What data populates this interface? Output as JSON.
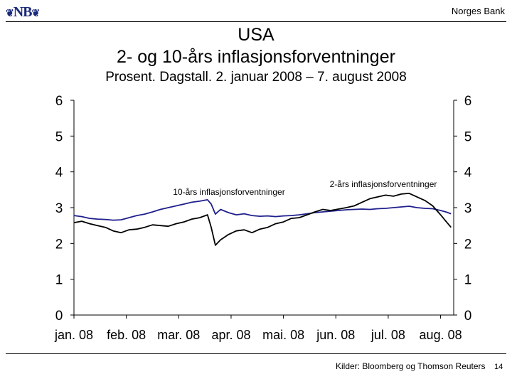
{
  "header": {
    "logo_text": "NB",
    "logo_mark": "❦",
    "bank_name": "Norges Bank"
  },
  "footer": {
    "source": "Kilder: Bloomberg og Thomson Reuters",
    "page_number": "14"
  },
  "chart_data": {
    "type": "line",
    "title": "USA",
    "title_line2": "2- og 10-års inflasjonsforventninger",
    "subtitle": "Prosent. Dagstall. 2. januar 2008 – 7. august 2008",
    "xlabel": "",
    "ylabel": "",
    "ylim": [
      0,
      6
    ],
    "yticks": [
      0,
      1,
      2,
      3,
      4,
      5,
      6
    ],
    "xlim": [
      0,
      7.25
    ],
    "xticks": [
      {
        "pos": 0,
        "label": "jan. 08"
      },
      {
        "pos": 1,
        "label": "feb. 08"
      },
      {
        "pos": 2,
        "label": "mar. 08"
      },
      {
        "pos": 3,
        "label": "apr. 08"
      },
      {
        "pos": 4,
        "label": "mai. 08"
      },
      {
        "pos": 5,
        "label": "jun. 08"
      },
      {
        "pos": 6,
        "label": "jul. 08"
      },
      {
        "pos": 7,
        "label": "aug. 08"
      }
    ],
    "legend_placement": "inline labels",
    "colors": {
      "ten_year": "#1f1f8c",
      "two_year": "#000000"
    },
    "series": [
      {
        "name": "10-års inflasjonsforventninger",
        "color": "#1f1f8c",
        "x": [
          0,
          0.15,
          0.3,
          0.45,
          0.6,
          0.75,
          0.9,
          1.05,
          1.2,
          1.35,
          1.5,
          1.65,
          1.8,
          1.95,
          2.1,
          2.25,
          2.4,
          2.55,
          2.62,
          2.7,
          2.8,
          2.95,
          3.1,
          3.25,
          3.4,
          3.55,
          3.7,
          3.85,
          4.0,
          4.15,
          4.3,
          4.45,
          4.6,
          4.75,
          4.9,
          5.05,
          5.2,
          5.35,
          5.5,
          5.65,
          5.8,
          5.95,
          6.1,
          6.25,
          6.4,
          6.55,
          6.7,
          6.85,
          7.0,
          7.1,
          7.2
        ],
        "values": [
          2.78,
          2.75,
          2.7,
          2.68,
          2.67,
          2.65,
          2.66,
          2.72,
          2.78,
          2.82,
          2.88,
          2.95,
          3.0,
          3.05,
          3.1,
          3.15,
          3.18,
          3.22,
          3.1,
          2.82,
          2.95,
          2.86,
          2.8,
          2.83,
          2.78,
          2.76,
          2.77,
          2.75,
          2.77,
          2.78,
          2.8,
          2.83,
          2.86,
          2.88,
          2.9,
          2.92,
          2.94,
          2.95,
          2.96,
          2.95,
          2.97,
          2.98,
          3.0,
          3.02,
          3.04,
          3.0,
          2.98,
          2.97,
          2.92,
          2.88,
          2.83
        ]
      },
      {
        "name": "2-års inflasjonsforventninger",
        "color": "#000000",
        "x": [
          0,
          0.15,
          0.3,
          0.45,
          0.6,
          0.75,
          0.9,
          1.05,
          1.2,
          1.35,
          1.5,
          1.65,
          1.8,
          1.95,
          2.1,
          2.25,
          2.4,
          2.55,
          2.62,
          2.7,
          2.8,
          2.95,
          3.1,
          3.25,
          3.4,
          3.55,
          3.7,
          3.85,
          4.0,
          4.15,
          4.3,
          4.45,
          4.6,
          4.75,
          4.9,
          5.05,
          5.2,
          5.35,
          5.5,
          5.65,
          5.8,
          5.95,
          6.1,
          6.25,
          6.4,
          6.55,
          6.7,
          6.85,
          7.0,
          7.1,
          7.2
        ],
        "values": [
          2.58,
          2.62,
          2.55,
          2.5,
          2.45,
          2.35,
          2.3,
          2.38,
          2.4,
          2.45,
          2.52,
          2.5,
          2.48,
          2.55,
          2.6,
          2.68,
          2.72,
          2.8,
          2.45,
          1.95,
          2.1,
          2.25,
          2.35,
          2.38,
          2.3,
          2.4,
          2.45,
          2.55,
          2.6,
          2.7,
          2.72,
          2.8,
          2.88,
          2.95,
          2.92,
          2.96,
          3.0,
          3.05,
          3.15,
          3.25,
          3.3,
          3.35,
          3.32,
          3.38,
          3.4,
          3.3,
          3.2,
          3.05,
          2.8,
          2.62,
          2.45
        ]
      }
    ]
  }
}
